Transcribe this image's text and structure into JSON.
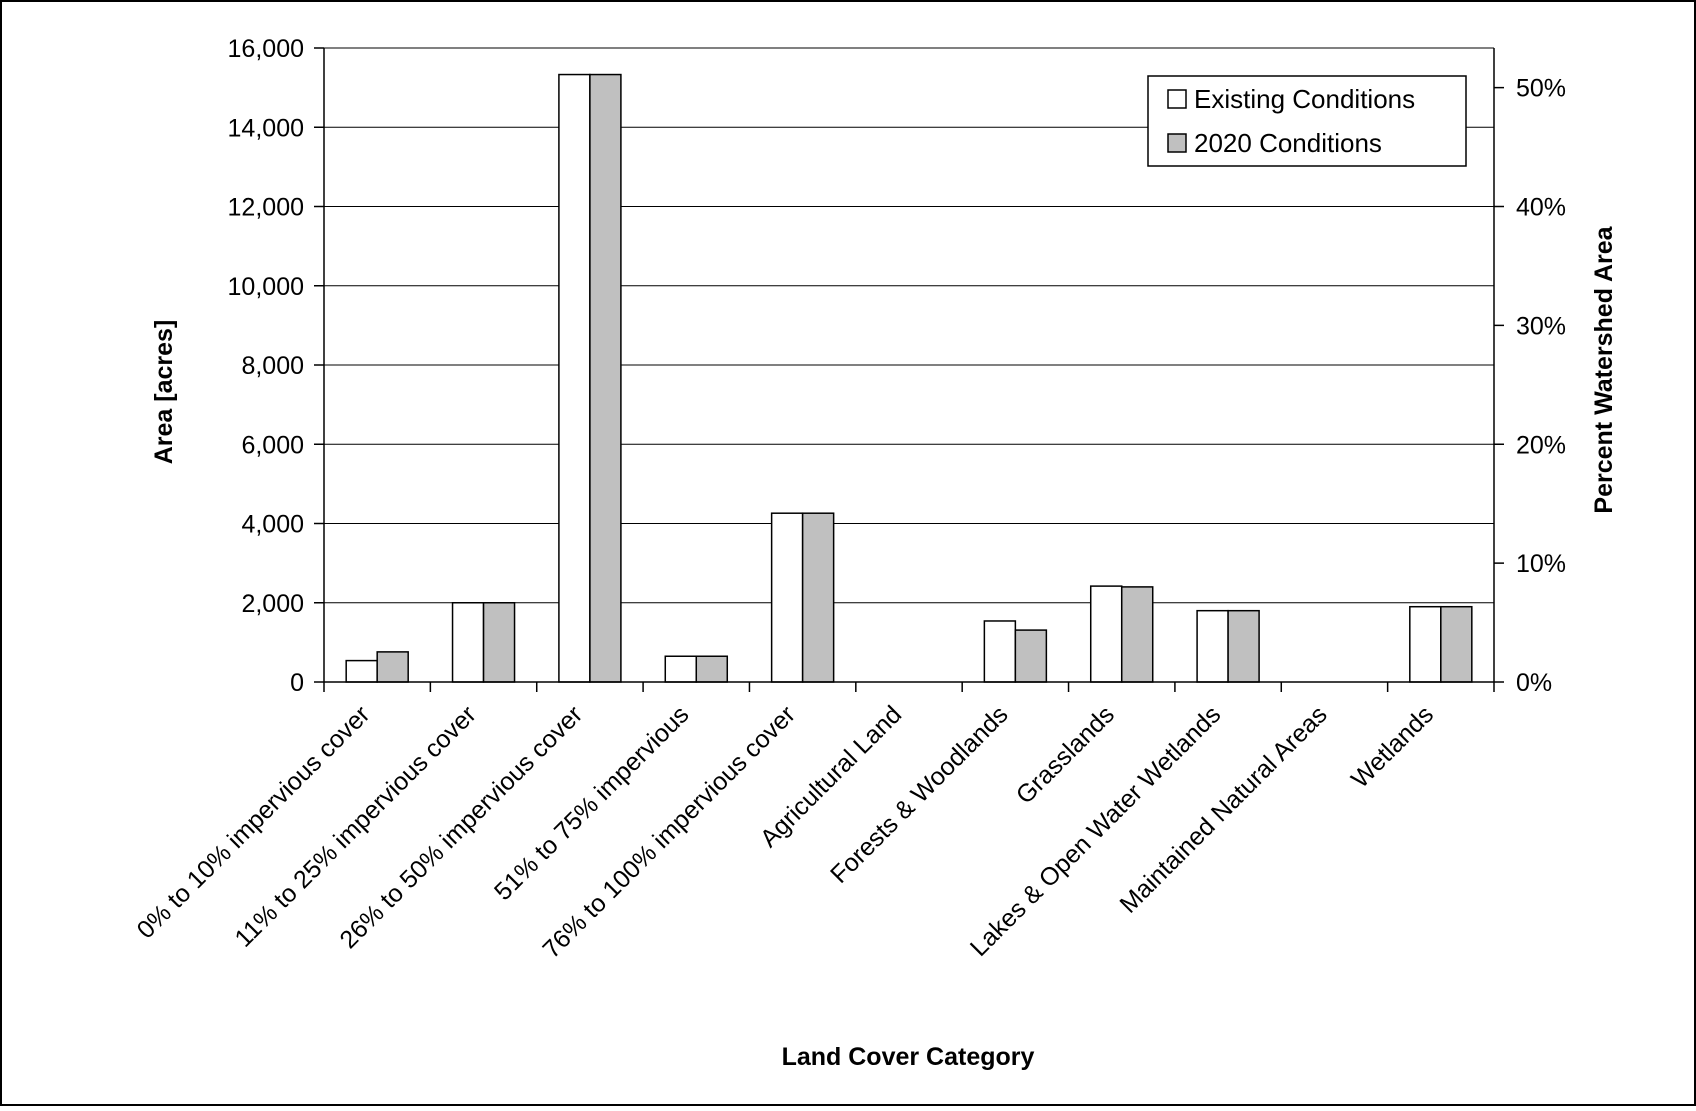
{
  "chart_data": {
    "type": "bar",
    "title": "",
    "xlabel": "Land Cover Category",
    "ylabel": "Area [acres]",
    "y2label": "Percent Watershed Area",
    "ylim": [
      0,
      16000
    ],
    "y2lim": [
      0,
      0.5
    ],
    "yticks": [
      "0",
      "2,000",
      "4,000",
      "6,000",
      "8,000",
      "10,000",
      "12,000",
      "14,000",
      "16,000"
    ],
    "y2ticks": [
      "0%",
      "10%",
      "20%",
      "30%",
      "40%",
      "50%"
    ],
    "grid": true,
    "legend_position": "top-right",
    "categories": [
      "0% to 10% impervious cover",
      "11% to 25% impervious cover",
      "26% to 50% impervious cover",
      "51% to 75% impervious",
      "76% to 100% impervious cover",
      "Agricultural Land",
      "Forests & Woodlands",
      "Grasslands",
      "Lakes & Open Water Wetlands",
      "Maintained Natural Areas",
      "Wetlands"
    ],
    "series": [
      {
        "name": "Existing Conditions",
        "color": "#ffffff",
        "values": [
          540,
          2000,
          15330,
          650,
          4260,
          0,
          1540,
          2420,
          1800,
          0,
          1900
        ]
      },
      {
        "name": "2020 Conditions",
        "color": "#c0c0c0",
        "values": [
          760,
          2000,
          15330,
          650,
          4260,
          0,
          1310,
          2400,
          1800,
          0,
          1900
        ]
      }
    ]
  }
}
